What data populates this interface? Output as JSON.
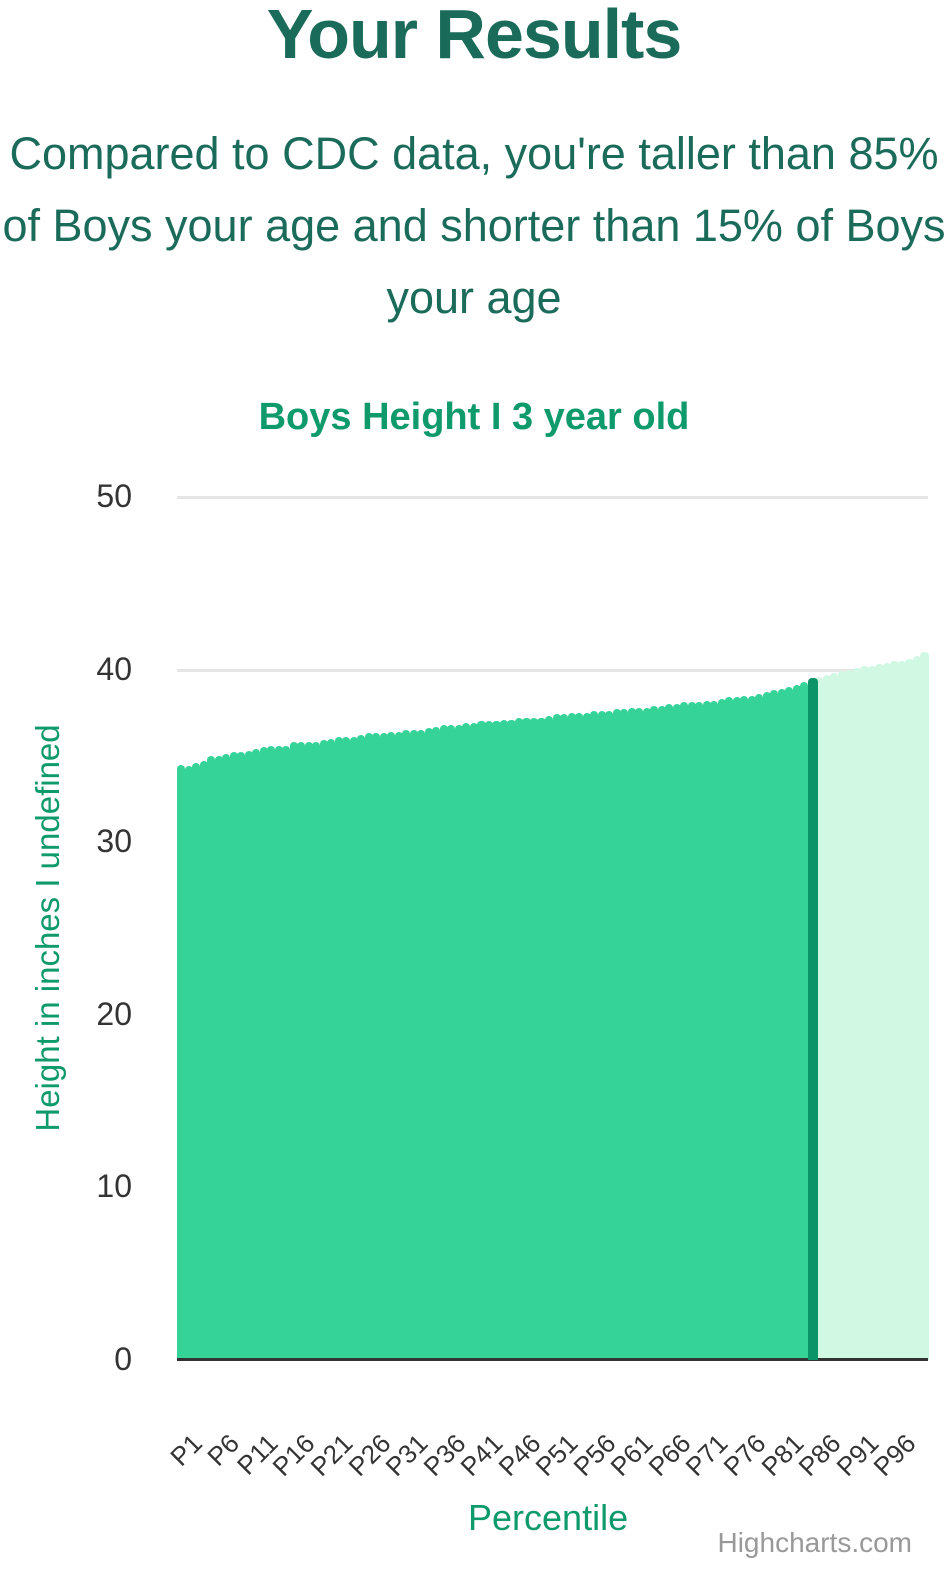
{
  "header": {
    "title": "Your Results",
    "summary": "Compared to CDC data, you're taller than 85% of Boys your age and shorter than 15% of Boys your age"
  },
  "colors": {
    "title_text": "#1a6b59",
    "accent": "#0f9a6b",
    "bar_below": "#36d399",
    "bar_highlight": "#0a9467",
    "bar_above": "#d0f8e3",
    "grid": "#e6e6e6",
    "axis": "#333333"
  },
  "chart_data": {
    "type": "bar",
    "title": "Boys Height I 3 year old",
    "xlabel": "Percentile",
    "ylabel": "Height in inches I undefined",
    "ylim": [
      0,
      50
    ],
    "yticks": [
      0,
      10,
      20,
      30,
      40,
      50
    ],
    "grid": true,
    "legend": "none",
    "highlight_category": "P85",
    "xtick_labels": [
      "P1",
      "P6",
      "P11",
      "P16",
      "P21",
      "P26",
      "P31",
      "P36",
      "P41",
      "P46",
      "P51",
      "P56",
      "P61",
      "P66",
      "P71",
      "P76",
      "P81",
      "P86",
      "P91",
      "P96"
    ],
    "categories": [
      "P1",
      "P2",
      "P3",
      "P4",
      "P5",
      "P6",
      "P7",
      "P8",
      "P9",
      "P10",
      "P11",
      "P12",
      "P13",
      "P14",
      "P15",
      "P16",
      "P17",
      "P18",
      "P19",
      "P20",
      "P21",
      "P22",
      "P23",
      "P24",
      "P25",
      "P26",
      "P27",
      "P28",
      "P29",
      "P30",
      "P31",
      "P32",
      "P33",
      "P34",
      "P35",
      "P36",
      "P37",
      "P38",
      "P39",
      "P40",
      "P41",
      "P42",
      "P43",
      "P44",
      "P45",
      "P46",
      "P47",
      "P48",
      "P49",
      "P50",
      "P51",
      "P52",
      "P53",
      "P54",
      "P55",
      "P56",
      "P57",
      "P58",
      "P59",
      "P60",
      "P61",
      "P62",
      "P63",
      "P64",
      "P65",
      "P66",
      "P67",
      "P68",
      "P69",
      "P70",
      "P71",
      "P72",
      "P73",
      "P74",
      "P75",
      "P76",
      "P77",
      "P78",
      "P79",
      "P80",
      "P81",
      "P82",
      "P83",
      "P84",
      "P85",
      "P86",
      "P87",
      "P88",
      "P89",
      "P90",
      "P91",
      "P92",
      "P93",
      "P94",
      "P95",
      "P96",
      "P97",
      "P98",
      "P99",
      "P100"
    ],
    "values": [
      34.5,
      34.4,
      34.6,
      34.7,
      35.0,
      35.0,
      35.1,
      35.2,
      35.2,
      35.3,
      35.4,
      35.5,
      35.6,
      35.6,
      35.6,
      35.8,
      35.8,
      35.8,
      35.8,
      35.9,
      36.0,
      36.1,
      36.1,
      36.1,
      36.2,
      36.3,
      36.3,
      36.3,
      36.4,
      36.4,
      36.5,
      36.5,
      36.5,
      36.6,
      36.7,
      36.8,
      36.8,
      36.8,
      36.9,
      36.9,
      37.0,
      37.0,
      37.0,
      37.1,
      37.1,
      37.2,
      37.2,
      37.2,
      37.2,
      37.3,
      37.4,
      37.4,
      37.5,
      37.5,
      37.5,
      37.6,
      37.6,
      37.6,
      37.7,
      37.7,
      37.8,
      37.8,
      37.8,
      37.9,
      37.9,
      38.0,
      38.0,
      38.1,
      38.1,
      38.1,
      38.2,
      38.2,
      38.3,
      38.4,
      38.4,
      38.5,
      38.5,
      38.6,
      38.7,
      38.8,
      38.9,
      39.0,
      39.1,
      39.3,
      39.5,
      39.6,
      39.7,
      39.8,
      39.9,
      40.0,
      40.1,
      40.2,
      40.2,
      40.3,
      40.4,
      40.5,
      40.5,
      40.6,
      40.8,
      41.0
    ]
  },
  "credits": "Highcharts.com"
}
